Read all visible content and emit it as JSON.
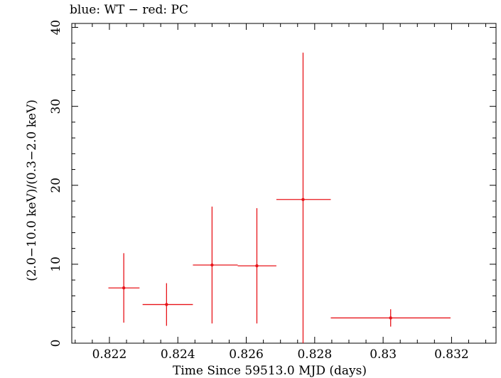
{
  "chart_data": {
    "type": "scatter",
    "title": "blue: WT − red: PC",
    "xlabel": "Time Since 59513.0 MJD (days)",
    "ylabel": "(2.0−10.0 keV)/(0.3−2.0 keV)",
    "xlim": [
      0.8209,
      0.8333
    ],
    "ylim": [
      0,
      40.5
    ],
    "xticks": [
      0.822,
      0.824,
      0.826,
      0.828,
      0.83,
      0.832
    ],
    "xtick_labels": [
      "0.822",
      "0.824",
      "0.826",
      "0.828",
      "0.83",
      "0.832"
    ],
    "yticks": [
      0,
      10,
      20,
      30,
      40
    ],
    "ytick_labels": [
      "0",
      "10",
      "20",
      "30",
      "40"
    ],
    "grid": false,
    "series": [
      {
        "color": "#e8141a",
        "points": [
          {
            "x": 0.82242,
            "xlo": 0.82197,
            "xhi": 0.82288,
            "y": 7.0,
            "ylo": 2.6,
            "yhi": 11.4
          },
          {
            "x": 0.82367,
            "xlo": 0.82297,
            "xhi": 0.82444,
            "y": 4.9,
            "ylo": 2.2,
            "yhi": 7.6
          },
          {
            "x": 0.825,
            "xlo": 0.82444,
            "xhi": 0.82575,
            "y": 9.9,
            "ylo": 2.5,
            "yhi": 17.3
          },
          {
            "x": 0.82631,
            "xlo": 0.82575,
            "xhi": 0.82688,
            "y": 9.8,
            "ylo": 2.5,
            "yhi": 17.1
          },
          {
            "x": 0.82766,
            "xlo": 0.82688,
            "xhi": 0.82847,
            "y": 18.2,
            "ylo": 0.0,
            "yhi": 36.8
          },
          {
            "x": 0.83022,
            "xlo": 0.82847,
            "xhi": 0.83197,
            "y": 3.2,
            "ylo": 2.1,
            "yhi": 4.3
          }
        ]
      }
    ]
  }
}
